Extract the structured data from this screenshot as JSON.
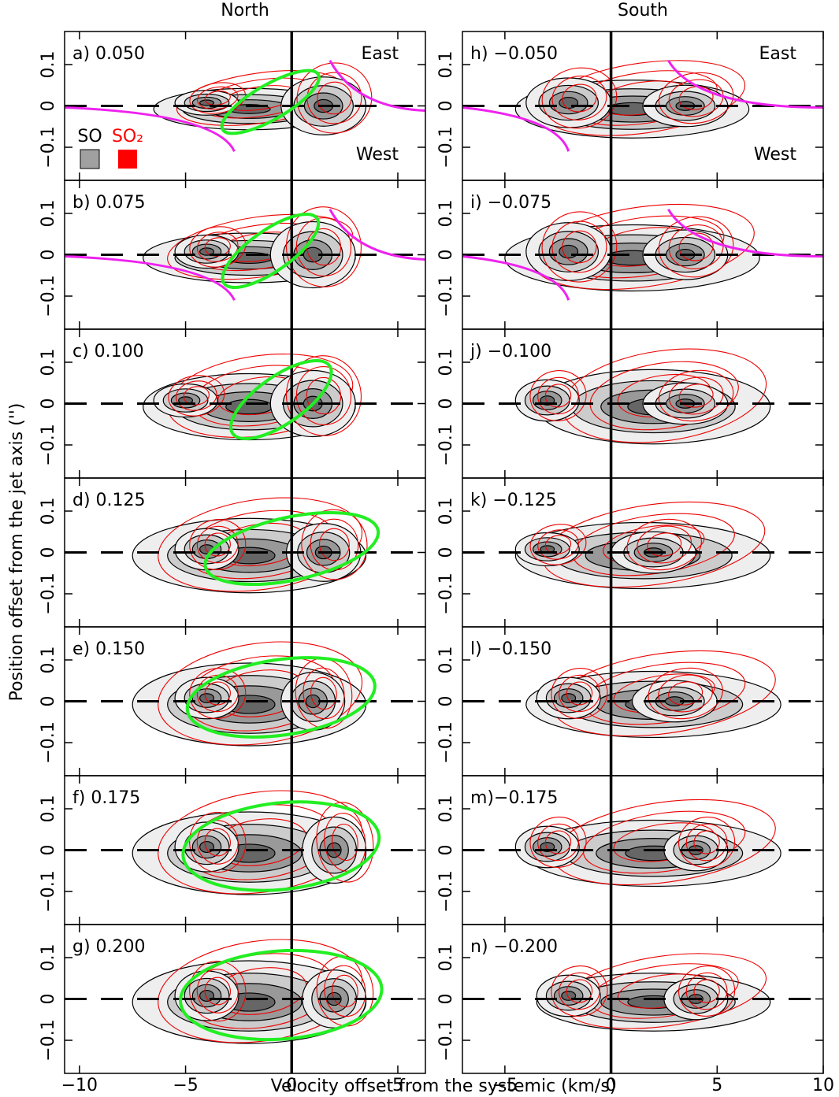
{
  "figure": {
    "column_titles": [
      "North",
      "South"
    ],
    "xlabel": "Velocity offset from the systemic (km/s)",
    "ylabel": "Position offset from the jet axis ('')",
    "annotations": [
      "East",
      "West"
    ],
    "legend": [
      {
        "name": "SO",
        "color": "#a0a0a0"
      },
      {
        "name": "SO₂",
        "color": "#ff0000"
      }
    ]
  },
  "chart_data": [
    {
      "type": "contour",
      "label": "a) 0.050",
      "xlim": [
        -10.7,
        6.3
      ],
      "xticks": [
        {
          "value": -10,
          "label": "−10"
        },
        {
          "value": -5,
          "label": "−5"
        },
        0,
        5
      ],
      "ylim": [
        -0.18,
        0.18
      ],
      "yticks": [
        {
          "value": -0.1,
          "label": "−0.1"
        },
        0,
        0.1
      ]
    },
    {
      "type": "contour",
      "label": "b) 0.075",
      "xlim": [
        -10.7,
        6.3
      ],
      "xticks": [
        {
          "value": -10,
          "label": "−10"
        },
        {
          "value": -5,
          "label": "−5"
        },
        0,
        5
      ],
      "ylim": [
        -0.18,
        0.18
      ],
      "yticks": [
        {
          "value": -0.1,
          "label": "−0.1"
        },
        0,
        0.1
      ]
    },
    {
      "type": "contour",
      "label": "c) 0.100",
      "xlim": [
        -10.7,
        6.3
      ],
      "xticks": [
        {
          "value": -10,
          "label": "−10"
        },
        {
          "value": -5,
          "label": "−5"
        },
        0,
        5
      ],
      "ylim": [
        -0.18,
        0.18
      ],
      "yticks": [
        {
          "value": -0.1,
          "label": "−0.1"
        },
        0,
        0.1
      ]
    },
    {
      "type": "contour",
      "label": "d) 0.125",
      "xlim": [
        -10.7,
        6.3
      ],
      "xticks": [
        {
          "value": -10,
          "label": "−10"
        },
        {
          "value": -5,
          "label": "−5"
        },
        0,
        5
      ],
      "ylim": [
        -0.18,
        0.18
      ],
      "yticks": [
        {
          "value": -0.1,
          "label": "−0.1"
        },
        0,
        0.1
      ]
    },
    {
      "type": "contour",
      "label": "e) 0.150",
      "xlim": [
        -10.7,
        6.3
      ],
      "xticks": [
        {
          "value": -10,
          "label": "−10"
        },
        {
          "value": -5,
          "label": "−5"
        },
        0,
        5
      ],
      "ylim": [
        -0.18,
        0.18
      ],
      "yticks": [
        {
          "value": -0.1,
          "label": "−0.1"
        },
        0,
        0.1
      ]
    },
    {
      "type": "contour",
      "label": "f) 0.175",
      "xlim": [
        -10.7,
        6.3
      ],
      "xticks": [
        {
          "value": -10,
          "label": "−10"
        },
        {
          "value": -5,
          "label": "−5"
        },
        0,
        5
      ],
      "ylim": [
        -0.18,
        0.18
      ],
      "yticks": [
        {
          "value": -0.1,
          "label": "−0.1"
        },
        0,
        0.1
      ]
    },
    {
      "type": "contour",
      "label": "g) 0.200",
      "xlim": [
        -10.7,
        6.3
      ],
      "xticks": [
        {
          "value": -10,
          "label": "−10"
        },
        {
          "value": -5,
          "label": "−5"
        },
        0,
        5
      ],
      "ylim": [
        -0.18,
        0.18
      ],
      "yticks": [
        {
          "value": -0.1,
          "label": "−0.1"
        },
        0,
        0.1
      ]
    },
    {
      "type": "contour",
      "label": "h) −0.050",
      "xlim": [
        -7,
        10
      ],
      "xticks": [
        {
          "value": -5,
          "label": "−5"
        },
        0,
        5,
        10
      ],
      "ylim": [
        -0.18,
        0.18
      ],
      "yticks": [
        {
          "value": -0.1,
          "label": "−0.1"
        },
        0,
        0.1
      ]
    },
    {
      "type": "contour",
      "label": "i) −0.075",
      "xlim": [
        -7,
        10
      ],
      "xticks": [
        {
          "value": -5,
          "label": "−5"
        },
        0,
        5,
        10
      ],
      "ylim": [
        -0.18,
        0.18
      ],
      "yticks": [
        {
          "value": -0.1,
          "label": "−0.1"
        },
        0,
        0.1
      ]
    },
    {
      "type": "contour",
      "label": "j) −0.100",
      "xlim": [
        -7,
        10
      ],
      "xticks": [
        {
          "value": -5,
          "label": "−5"
        },
        0,
        5,
        10
      ],
      "ylim": [
        -0.18,
        0.18
      ],
      "yticks": [
        {
          "value": -0.1,
          "label": "−0.1"
        },
        0,
        0.1
      ]
    },
    {
      "type": "contour",
      "label": "k) −0.125",
      "xlim": [
        -7,
        10
      ],
      "xticks": [
        {
          "value": -5,
          "label": "−5"
        },
        0,
        5,
        10
      ],
      "ylim": [
        -0.18,
        0.18
      ],
      "yticks": [
        {
          "value": -0.1,
          "label": "−0.1"
        },
        0,
        0.1
      ]
    },
    {
      "type": "contour",
      "label": "l) −0.150",
      "xlim": [
        -7,
        10
      ],
      "xticks": [
        {
          "value": -5,
          "label": "−5"
        },
        0,
        5,
        10
      ],
      "ylim": [
        -0.18,
        0.18
      ],
      "yticks": [
        {
          "value": -0.1,
          "label": "−0.1"
        },
        0,
        0.1
      ]
    },
    {
      "type": "contour",
      "label": "m)−0.175",
      "xlim": [
        -7,
        10
      ],
      "xticks": [
        {
          "value": -5,
          "label": "−5"
        },
        0,
        5,
        10
      ],
      "ylim": [
        -0.18,
        0.18
      ],
      "yticks": [
        {
          "value": -0.1,
          "label": "−0.1"
        },
        0,
        0.1
      ]
    },
    {
      "type": "contour",
      "label": "n) −0.200",
      "xlim": [
        -7,
        10
      ],
      "xticks": [
        {
          "value": -5,
          "label": "−5"
        },
        0,
        5,
        10
      ],
      "ylim": [
        -0.18,
        0.18
      ],
      "yticks": [
        {
          "value": -0.1,
          "label": "−0.1"
        },
        0,
        0.1
      ]
    }
  ]
}
